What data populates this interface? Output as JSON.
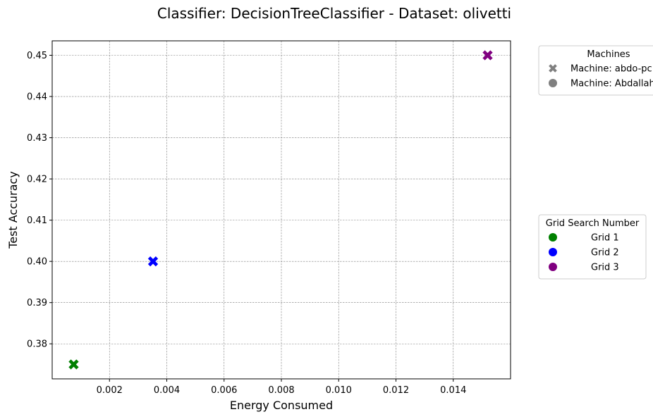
{
  "chart_data": {
    "type": "scatter",
    "title": "Classifier: DecisionTreeClassifier - Dataset: olivetti",
    "xlabel": "Energy Consumed",
    "ylabel": "Test Accuracy",
    "xlim": [
      0.0,
      0.016
    ],
    "ylim": [
      0.3715,
      0.4535
    ],
    "xticks": [
      "0.002",
      "0.004",
      "0.006",
      "0.008",
      "0.010",
      "0.012",
      "0.014"
    ],
    "xtick_values": [
      0.002,
      0.004,
      0.006,
      0.008,
      0.01,
      0.012,
      0.014
    ],
    "yticks": [
      "0.38",
      "0.39",
      "0.40",
      "0.41",
      "0.42",
      "0.43",
      "0.44",
      "0.45"
    ],
    "ytick_values": [
      0.38,
      0.39,
      0.4,
      0.41,
      0.42,
      0.43,
      0.44,
      0.45
    ],
    "grid": true,
    "points": [
      {
        "x": 0.00075,
        "y": 0.375,
        "grid": "Grid 1",
        "machine": "Machine: abdo-pc",
        "color": "#008000",
        "marker": "x"
      },
      {
        "x": 0.00352,
        "y": 0.4,
        "grid": "Grid 2",
        "machine": "Machine: abdo-pc",
        "color": "#0000ff",
        "marker": "x"
      },
      {
        "x": 0.0152,
        "y": 0.45,
        "grid": "Grid 3",
        "machine": "Machine: abdo-pc",
        "color": "#800080",
        "marker": "x"
      }
    ],
    "legends": [
      {
        "title": "Machines",
        "placement": "upper-right-outside",
        "entries": [
          {
            "label": "Machine: abdo-pc",
            "marker": "x",
            "color": "#808080"
          },
          {
            "label": "Machine: Abdallah",
            "marker": "circle",
            "color": "#808080"
          }
        ]
      },
      {
        "title": "Grid Search Number",
        "placement": "center-right-outside",
        "entries": [
          {
            "label": "Grid 1",
            "marker": "circle",
            "color": "#008000"
          },
          {
            "label": "Grid 2",
            "marker": "circle",
            "color": "#0000ff"
          },
          {
            "label": "Grid 3",
            "marker": "circle",
            "color": "#800080"
          }
        ]
      }
    ]
  },
  "colors": {
    "grid_line": "#808080",
    "axis": "#000000",
    "legend_border": "#cccccc"
  }
}
